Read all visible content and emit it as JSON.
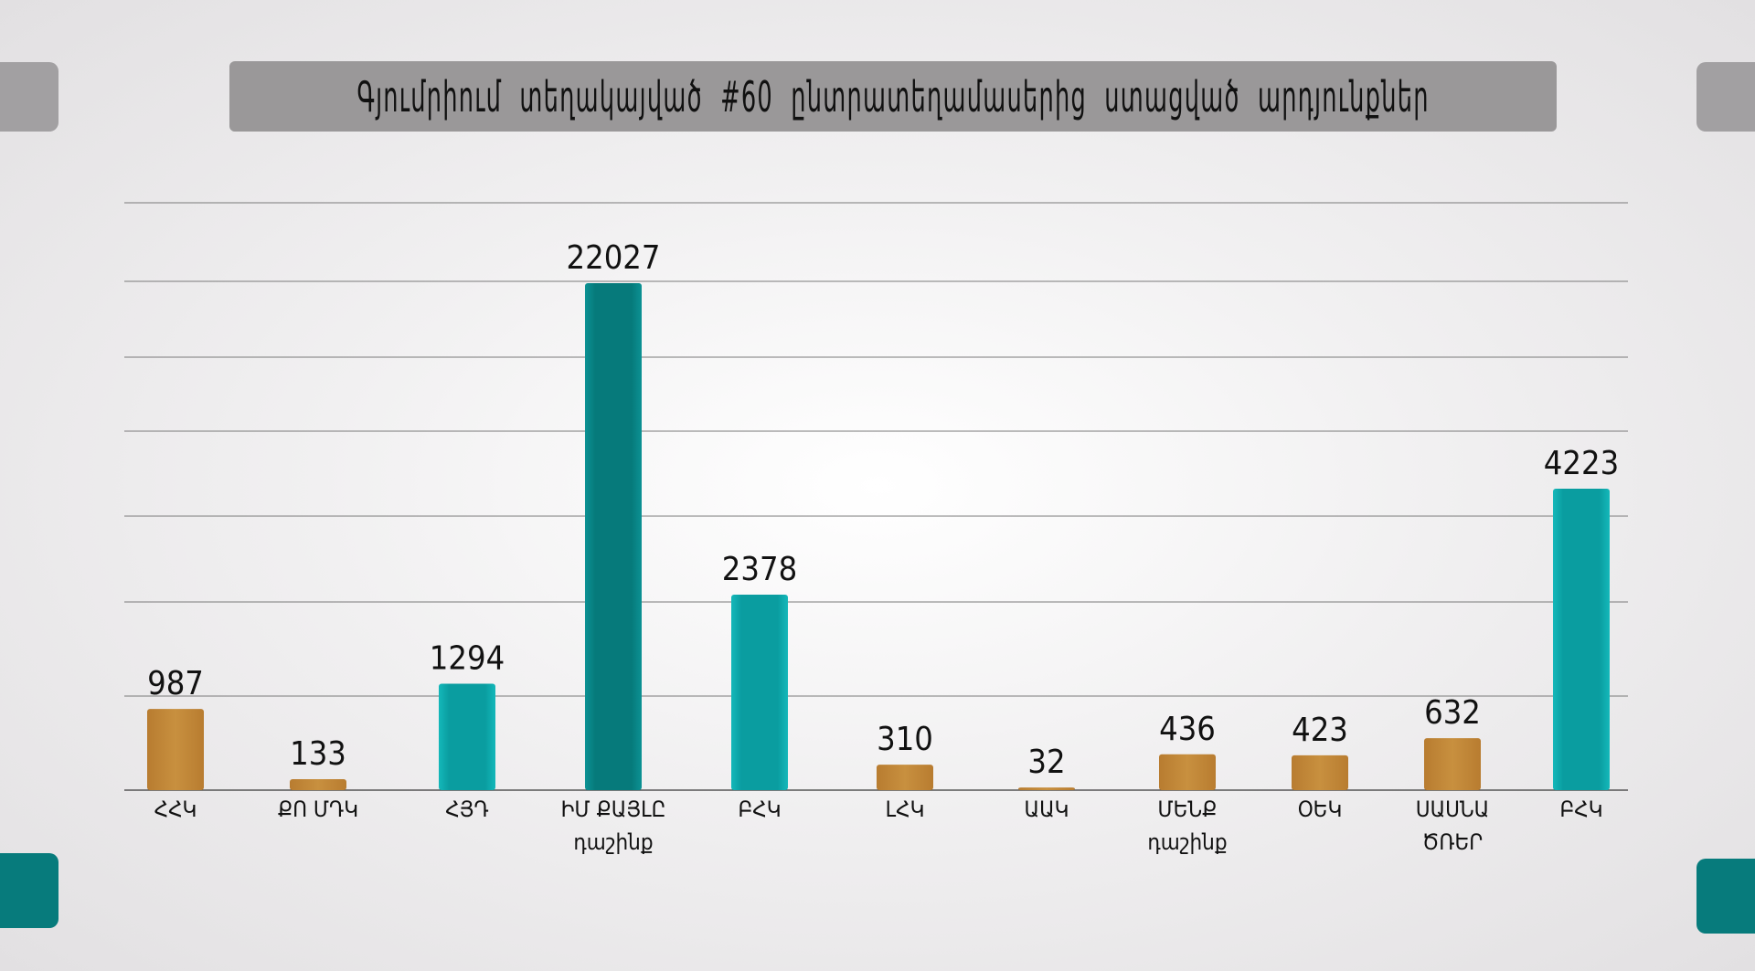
{
  "title": "Գյումրիում տեղակայված #60 ընտրատեղամասերից ստացված արդյունքներ",
  "colors": {
    "orange": "#c58a3a",
    "teal": "#0b9ea0",
    "teal_dark": "#077b7c",
    "corner_gray": "#a2a0a2",
    "title_bg": "#9a9899"
  },
  "chart_data": {
    "type": "bar",
    "title": "Գյումրիում տեղակայված #60 ընտրատեղամասերից ստացված արդյունքներ",
    "categories": [
      [
        "ՀՀԿ"
      ],
      [
        "ՔՈ ՄԴԿ"
      ],
      [
        "ՀՅԴ"
      ],
      [
        "ԻՄ ՔԱՅԼԸ",
        "դաշինք"
      ],
      [
        "ԲՀԿ"
      ],
      [
        "ԼՀԿ"
      ],
      [
        "ԱԱԿ"
      ],
      [
        "ՄԵՆՔ",
        "դաշինք"
      ],
      [
        "ՕԵԿ"
      ],
      [
        "ՍԱՍՆԱ",
        "ԾՌԵՐ"
      ],
      [
        "ԲՀԿ"
      ]
    ],
    "values": [
      987,
      133,
      1294,
      22027,
      2378,
      310,
      32,
      436,
      423,
      632,
      4223
    ],
    "bar_colors": [
      "orange",
      "orange",
      "teal",
      "teal_dark",
      "teal",
      "orange",
      "orange",
      "orange",
      "orange",
      "orange",
      "teal"
    ],
    "grid": true,
    "legend": "none"
  }
}
